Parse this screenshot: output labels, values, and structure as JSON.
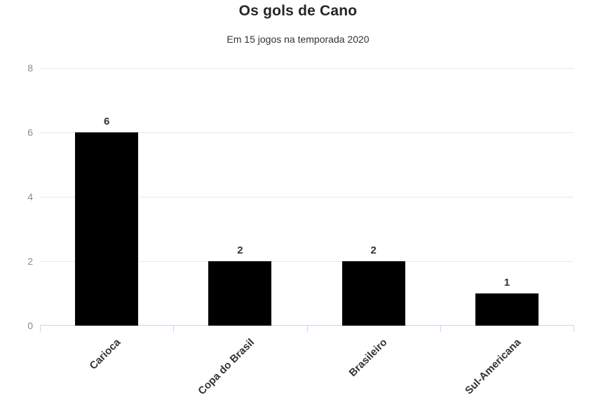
{
  "header": {
    "title": "Os gols de Cano",
    "subtitle": "Em 15 jogos na temporada 2020"
  },
  "chart_data": {
    "type": "bar",
    "title": "Os gols de Cano",
    "subtitle": "Em 15 jogos na temporada 2020",
    "categories": [
      "Carioca",
      "Copa do Brasil",
      "Brasileiro",
      "Sul-Americana"
    ],
    "values": [
      6,
      2,
      2,
      1
    ],
    "value_labels": [
      "6",
      "2",
      "2",
      "1"
    ],
    "xlabel": "",
    "ylabel": "",
    "ylim": [
      0,
      8
    ],
    "yticks": [
      0,
      2,
      4,
      6,
      8
    ],
    "grid": true,
    "legend": false
  },
  "colors": {
    "bar": "#000000",
    "grid": "#e9e9e9",
    "axis": "#ccd6ea",
    "ytick_label": "#8c8c8c",
    "value_label": "#333333",
    "category_label": "#333333",
    "title": "#262626",
    "background": "#ffffff"
  }
}
